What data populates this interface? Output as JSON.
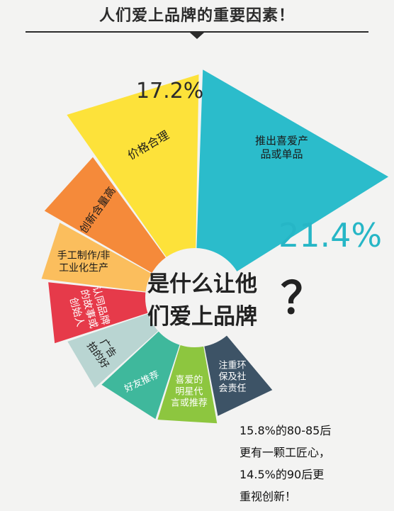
{
  "header": {
    "title": "人们爱上品牌的重要因素！"
  },
  "center": {
    "line1": "是什么让他",
    "line2": "们爱上品牌",
    "mark": "？"
  },
  "note": {
    "line1": "15.8%的80-85后",
    "line2": "更有一颗工匠心，",
    "line3": "14.5%的90后更",
    "line4": "重视创新！"
  },
  "chart_data": {
    "type": "pie",
    "title": "人们爱上品牌的重要因素！",
    "slices": [
      {
        "label": "推出喜爱产品或单品",
        "lines": [
          "推出喜爱产",
          "品或单品"
        ],
        "value": 21.4,
        "value_label": "21.4%",
        "color": "#2bbccb",
        "text_color": "#1a1a1a"
      },
      {
        "label": "价格合理",
        "lines": [
          "价格合理"
        ],
        "value": 17.2,
        "value_label": "17.2%",
        "color": "#fde23a",
        "text_color": "#1a1a1a"
      },
      {
        "label": "创新含量高",
        "lines": [
          "创新含量高"
        ],
        "value": null,
        "value_label": "",
        "color": "#f58a3a",
        "text_color": "#1a1a1a"
      },
      {
        "label": "手工制作/非工业化生产",
        "lines": [
          "手工制作/非",
          "工业化生产"
        ],
        "value": null,
        "value_label": "",
        "color": "#fbbe5d",
        "text_color": "#1a1a1a"
      },
      {
        "label": "认同品牌的故事或创始人",
        "lines": [
          "认同品牌",
          "的故事或",
          "创始人"
        ],
        "value": null,
        "value_label": "",
        "color": "#e63a4a",
        "text_color": "#ffffff"
      },
      {
        "label": "广告拍的好",
        "lines": [
          "广告",
          "拍的好"
        ],
        "value": null,
        "value_label": "",
        "color": "#b9d5d2",
        "text_color": "#1a1a1a"
      },
      {
        "label": "好友推荐",
        "lines": [
          "好友推荐"
        ],
        "value": null,
        "value_label": "",
        "color": "#3fb89c",
        "text_color": "#ffffff"
      },
      {
        "label": "喜爱的明星代言或推荐",
        "lines": [
          "喜爱的",
          "明星代",
          "言或推荐"
        ],
        "value": null,
        "value_label": "",
        "color": "#8dc63f",
        "text_color": "#ffffff"
      },
      {
        "label": "注重环保及社会责任",
        "lines": [
          "注重环",
          "保及社",
          "会责任"
        ],
        "value": null,
        "value_label": "",
        "color": "#3d5366",
        "text_color": "#ffffff"
      }
    ]
  }
}
